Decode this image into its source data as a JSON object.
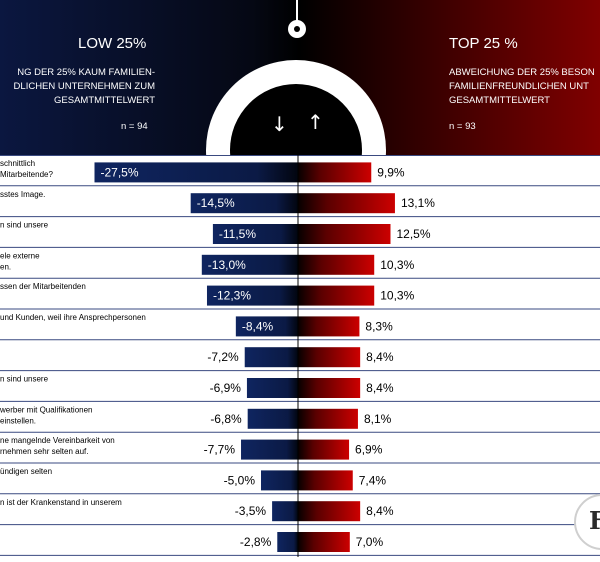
{
  "header": {
    "low_title": "LOW 25%",
    "low_subtitle_lines": [
      "NG DER 25% KAUM FAMILIEN-",
      "DLICHEN UNTERNEHMEN ZUM",
      "GESAMTMITTELWERT"
    ],
    "low_n": "n = 94",
    "top_title": "TOP 25 %",
    "top_subtitle_lines": [
      "ABWEICHUNG DER 25% BESON",
      "FAMILIENFREUNDLICHEN UNT",
      "GESAMTMITTELWERT"
    ],
    "top_n": "n = 93",
    "arrow_down": "↓",
    "arrow_up": "↑"
  },
  "colors": {
    "low_bar": "#0f2560",
    "top_bar": "#cc0000",
    "header_left": "#0b1740",
    "header_right": "#7a0000",
    "grid": "#2a3a70"
  },
  "logo_text": "FF",
  "chart_data": {
    "type": "bar",
    "orientation": "diverging-horizontal",
    "categories": [
      [
        "schnittlich",
        "Mitarbeitende?"
      ],
      [
        "sstes  Image."
      ],
      [
        "n  sind  unsere"
      ],
      [
        "ele externe",
        "en."
      ],
      [
        "ssen der Mitarbeitenden"
      ],
      [
        "und Kunden,  weil ihre Ansprechpersonen"
      ],
      [
        ""
      ],
      [
        "n  sind  unsere"
      ],
      [
        "werber  mit Qualifikationen",
        "einstellen."
      ],
      [
        "ne mangelnde Vereinbarkeit  von",
        "rnehmen  sehr selten auf."
      ],
      [
        "ündigen  selten"
      ],
      [
        "n  ist der Krankenstand  in unserem"
      ],
      [
        ""
      ]
    ],
    "series": [
      {
        "name": "LOW 25%",
        "values": [
          -27.5,
          -14.5,
          -11.5,
          -13.0,
          -12.3,
          -8.4,
          -7.2,
          -6.9,
          -6.8,
          -7.7,
          -5.0,
          -3.5,
          -2.8
        ]
      },
      {
        "name": "TOP 25 %",
        "values": [
          9.9,
          13.1,
          12.5,
          10.3,
          10.3,
          8.3,
          8.4,
          8.4,
          8.1,
          6.9,
          7.4,
          8.4,
          7.0
        ]
      }
    ],
    "low_labels": [
      "-27,5%",
      "-14,5%",
      "-11,5%",
      "-13,0%",
      "-12,3%",
      "-8,4%",
      "-7,2%",
      "-6,9%",
      "-6,8%",
      "-7,7%",
      "-5,0%",
      "-3,5%",
      "-2,8%"
    ],
    "top_labels": [
      "9,9%",
      "13,1%",
      "12,5%",
      "10,3%",
      "10,3%",
      "8,3%",
      "8,4%",
      "8,4%",
      "8,1%",
      "6,9%",
      "7,4%",
      "8,4%",
      "7,0%"
    ]
  }
}
